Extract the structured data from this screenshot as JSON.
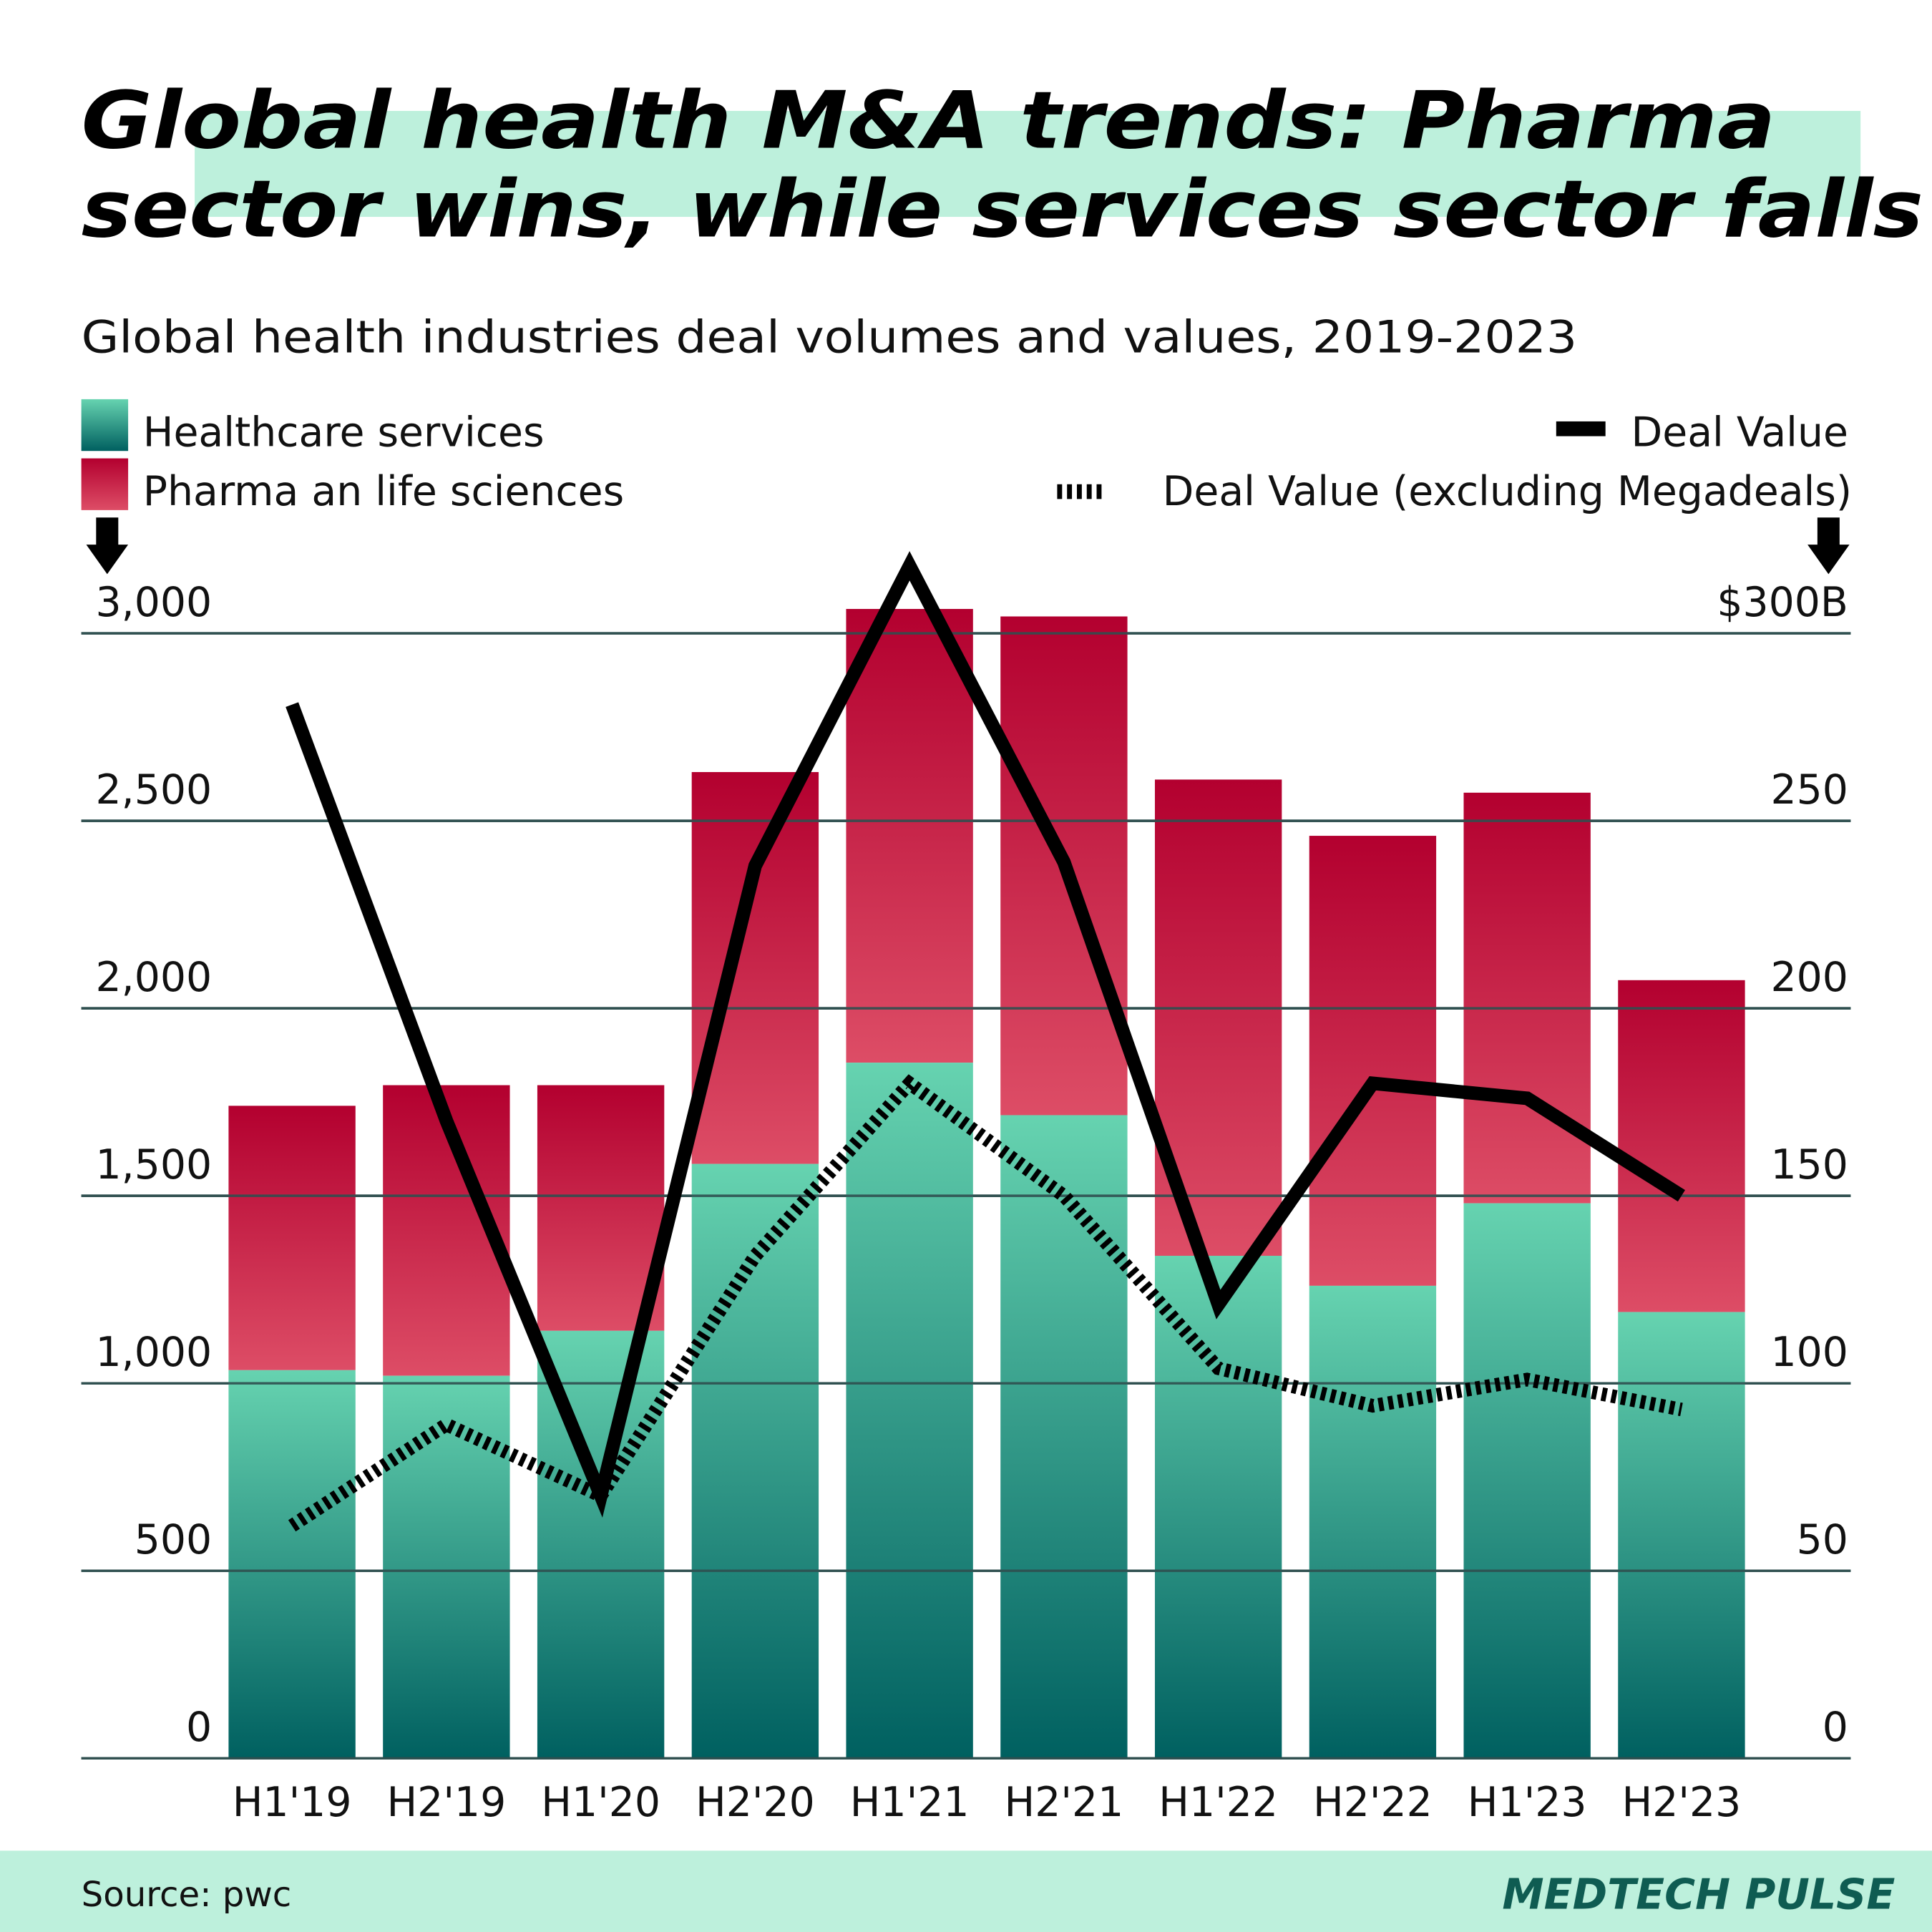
{
  "title_lines": [
    "Global health M&A trends: Pharma",
    "sector wins, while services sector falls"
  ],
  "subtitle": "Global health industries deal volumes and values, 2019-2023",
  "legend": {
    "healthcare": "Healthcare services",
    "pharma": "Pharma an life sciences",
    "deal_value": "Deal Value",
    "deal_value_ex": "Deal Value (excluding Megadeals)"
  },
  "colors": {
    "healthcare_top": "#66d3b0",
    "healthcare_bottom": "#006060",
    "pharma_top": "#b3002f",
    "pharma_bottom": "#dd4d66",
    "highlight": "#bdf0dc",
    "brand": "#0f5c52"
  },
  "footer": {
    "source": "Source: pwc",
    "brand": "MEDTECH PULSE"
  },
  "chart_data": {
    "type": "bar",
    "stacked": true,
    "categories": [
      "H1'19",
      "H2'19",
      "H1'20",
      "H2'20",
      "H1'21",
      "H2'21",
      "H1'22",
      "H2'22",
      "H1'23",
      "H2'23"
    ],
    "series": [
      {
        "name": "Healthcare services",
        "values": [
          1035,
          1020,
          1140,
          1585,
          1855,
          1715,
          1340,
          1260,
          1480,
          1190
        ]
      },
      {
        "name": "Pharma an life sciences",
        "values": [
          705,
          775,
          655,
          1045,
          1210,
          1330,
          1270,
          1200,
          1095,
          885
        ]
      }
    ],
    "line_series": [
      {
        "name": "Deal Value",
        "axis": "right",
        "style": "solid",
        "values": [
          281,
          170,
          70,
          238,
          318,
          239,
          121,
          180,
          176,
          150
        ]
      },
      {
        "name": "Deal Value (excluding Megadeals)",
        "axis": "right",
        "style": "dotted",
        "values": [
          62,
          89,
          70,
          134,
          180,
          150,
          104,
          94,
          101,
          93
        ]
      }
    ],
    "y_left": {
      "ylim": [
        0,
        3000
      ],
      "ticks": [
        "0",
        "500",
        "1,000",
        "1,500",
        "2,000",
        "2,500",
        "3,000"
      ]
    },
    "y_right": {
      "ylim": [
        0,
        300
      ],
      "ticks": [
        "0",
        "50",
        "100",
        "150",
        "200",
        "250",
        "$300B"
      ]
    },
    "grid": true,
    "legend_placement": "top"
  }
}
